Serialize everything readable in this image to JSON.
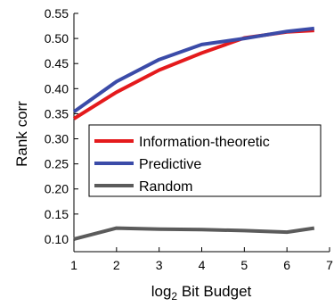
{
  "chart_data": {
    "type": "line",
    "xlabel_base": "log",
    "xlabel_sub": "2",
    "xlabel_rest": " Bit Budget",
    "ylabel": "Rank corr",
    "xlim": [
      1,
      7
    ],
    "ylim": [
      0.075,
      0.55
    ],
    "xticks": [
      1,
      2,
      3,
      4,
      5,
      6,
      7
    ],
    "yticks": [
      0.1,
      0.15,
      0.2,
      0.25,
      0.3,
      0.35,
      0.4,
      0.45,
      0.5,
      0.55
    ],
    "grid": false,
    "legend_position": "center",
    "series": [
      {
        "name": "Information-theoretic",
        "color": "#e41a1c",
        "x": [
          1,
          2,
          3,
          4,
          5,
          6,
          6.64
        ],
        "y": [
          0.34,
          0.393,
          0.437,
          0.471,
          0.501,
          0.513,
          0.516
        ]
      },
      {
        "name": "Predictive",
        "color": "#3b4ba8",
        "x": [
          1,
          2,
          3,
          4,
          5,
          6,
          6.64
        ],
        "y": [
          0.354,
          0.414,
          0.458,
          0.488,
          0.5,
          0.514,
          0.52
        ]
      },
      {
        "name": "Random",
        "color": "#5b5b5b",
        "x": [
          1,
          2,
          3,
          4,
          5,
          6,
          6.64
        ],
        "y": [
          0.1,
          0.122,
          0.12,
          0.119,
          0.117,
          0.114,
          0.122
        ]
      }
    ]
  }
}
